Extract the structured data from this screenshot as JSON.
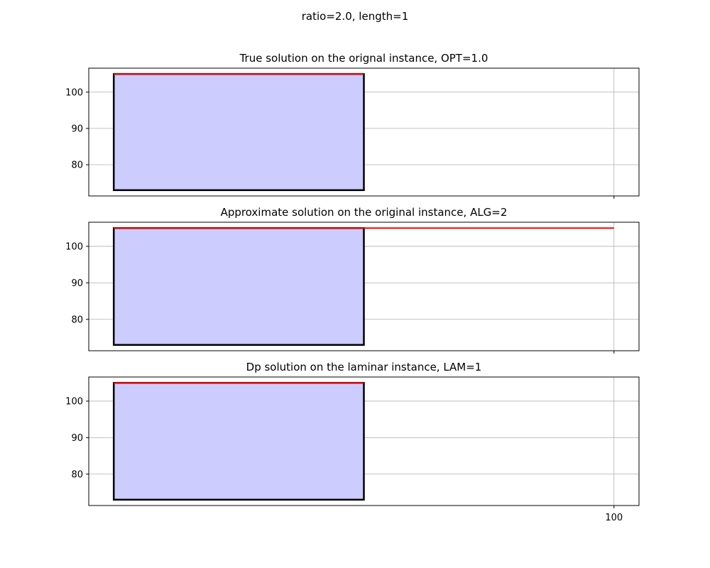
{
  "figure": {
    "suptitle": "ratio=2.0, length=1"
  },
  "chart_data": [
    {
      "type": "bar",
      "title": "True solution on the orignal instance, OPT=1.0",
      "xlabel": "",
      "ylabel": "",
      "xlim": [
        -5,
        105
      ],
      "ylim": [
        71.4,
        106.6
      ],
      "xticks": [
        100
      ],
      "xtick_labels_visible": false,
      "yticks": [
        80,
        90,
        100
      ],
      "grid": true,
      "rects": [
        {
          "x0": 0,
          "x1": 50,
          "y0": 73,
          "y1": 105,
          "fill": "#ccccff",
          "edge": "#000000"
        }
      ],
      "lines": [
        {
          "x0": 0,
          "x1": 50,
          "y": 105,
          "color": "#ff0000"
        }
      ]
    },
    {
      "type": "bar",
      "title": "Approximate solution on the original instance, ALG=2",
      "xlabel": "",
      "ylabel": "",
      "xlim": [
        -5,
        105
      ],
      "ylim": [
        71.4,
        106.6
      ],
      "xticks": [
        100
      ],
      "xtick_labels_visible": false,
      "yticks": [
        80,
        90,
        100
      ],
      "grid": true,
      "rects": [
        {
          "x0": 0,
          "x1": 50,
          "y0": 73,
          "y1": 105,
          "fill": "#ccccff",
          "edge": "#000000"
        }
      ],
      "lines": [
        {
          "x0": 0,
          "x1": 100,
          "y": 105,
          "color": "#ff0000"
        }
      ]
    },
    {
      "type": "bar",
      "title": "Dp solution on the laminar instance, LAM=1",
      "xlabel": "",
      "ylabel": "",
      "xlim": [
        -5,
        105
      ],
      "ylim": [
        71.4,
        106.6
      ],
      "xticks": [
        100
      ],
      "xtick_labels_visible": true,
      "yticks": [
        80,
        90,
        100
      ],
      "grid": true,
      "rects": [
        {
          "x0": 0,
          "x1": 50,
          "y0": 73,
          "y1": 105,
          "fill": "#ccccff",
          "edge": "#000000"
        }
      ],
      "lines": [
        {
          "x0": 0,
          "x1": 50,
          "y": 105,
          "color": "#ff0000"
        }
      ]
    }
  ]
}
